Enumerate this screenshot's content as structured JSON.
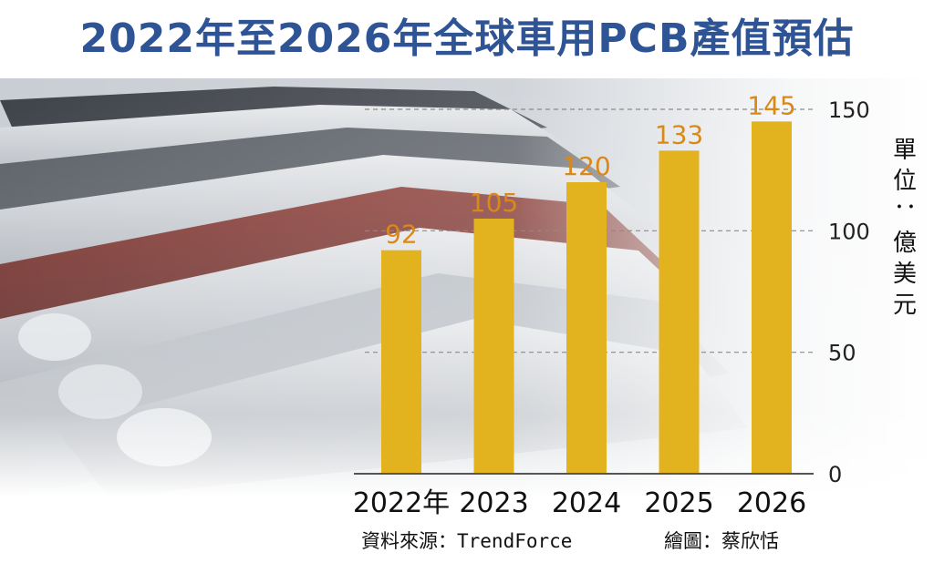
{
  "title": "2022年至2026年全球車用PCB產值預估",
  "unit_label": "單位：億美元",
  "source": "資料來源：TrendForce",
  "credit": "繪圖：蔡欣恬",
  "colors": {
    "bar": "#e3b31f",
    "value_label": "#d9891a",
    "title": "#2f5496"
  },
  "chart_data": {
    "type": "bar",
    "title": "2022年至2026年全球車用PCB產值預估",
    "categories": [
      "2022年",
      "2023",
      "2024",
      "2025",
      "2026"
    ],
    "values": [
      92,
      105,
      120,
      133,
      145
    ],
    "ylabel": "單位：億美元",
    "ylim": [
      0,
      150
    ],
    "yticks": [
      0,
      50,
      100,
      150
    ],
    "y_axis_side": "right",
    "grid": "dashed horizontal",
    "background": "photo of parked cars"
  }
}
